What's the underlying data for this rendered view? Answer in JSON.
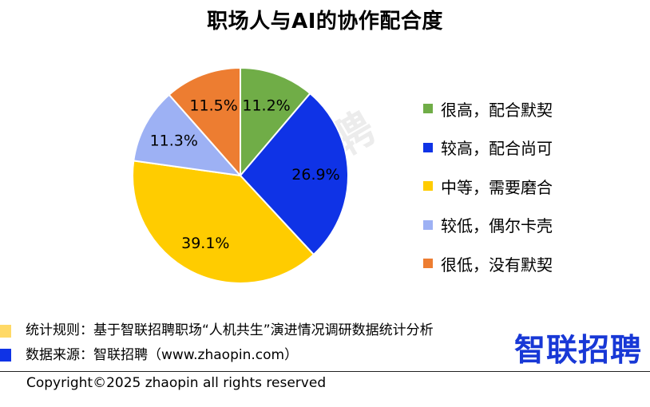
{
  "title": "职场人与AI的协作配合度",
  "watermark": "智联招聘",
  "chart_data": {
    "type": "pie",
    "title": "职场人与AI的协作配合度",
    "slices": [
      {
        "label": "很高，配合默契",
        "value": 11.2,
        "display": "11.2%",
        "color": "#70ad47"
      },
      {
        "label": "较高，配合尚可",
        "value": 26.9,
        "display": "26.9%",
        "color": "#0f33e6"
      },
      {
        "label": "中等，需要磨合",
        "value": 39.1,
        "display": "39.1%",
        "color": "#ffcc00"
      },
      {
        "label": "较低，偶尔卡壳",
        "value": 11.3,
        "display": "11.3%",
        "color": "#9db1f4"
      },
      {
        "label": "很低，没有默契",
        "value": 11.5,
        "display": "11.5%",
        "color": "#ed7d31"
      }
    ],
    "start": "12 o'clock",
    "direction": "clockwise",
    "legend_position": "right"
  },
  "footer": {
    "note1": "统计规则：基于智联招聘职场“人机共生”演进情况调研数据统计分析",
    "note2": "数据来源：智联招聘（www.zhaopin.com）",
    "note1_color": "#ffd966",
    "note2_color": "#0f33e6",
    "copyright": "Copyright©2025 zhaopin all rights reserved",
    "brand": "智联招聘"
  }
}
